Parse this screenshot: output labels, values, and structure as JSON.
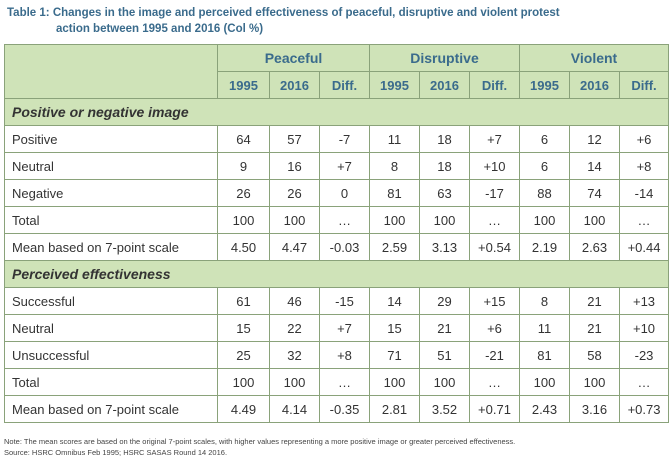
{
  "caption": {
    "label": "Table 1:",
    "line1": "Changes in the image and perceived effectiveness of peaceful, disruptive and violent protest",
    "line2": "action between 1995 and 2016 (Col %)"
  },
  "groups": [
    "Peaceful",
    "Disruptive",
    "Violent"
  ],
  "subheaders": [
    "1995",
    "2016",
    "Diff.",
    "1995",
    "2016",
    "Diff.",
    "1995",
    "2016",
    "Diff."
  ],
  "sections": [
    {
      "title": "Positive or negative image",
      "rows": [
        {
          "label": "Positive",
          "values": [
            "64",
            "57",
            "-7",
            "11",
            "18",
            "+7",
            "6",
            "12",
            "+6"
          ]
        },
        {
          "label": "Neutral",
          "values": [
            "9",
            "16",
            "+7",
            "8",
            "18",
            "+10",
            "6",
            "14",
            "+8"
          ]
        },
        {
          "label": "Negative",
          "values": [
            "26",
            "26",
            "0",
            "81",
            "63",
            "-17",
            "88",
            "74",
            "-14"
          ]
        },
        {
          "label": "Total",
          "values": [
            "100",
            "100",
            "…",
            "100",
            "100",
            "…",
            "100",
            "100",
            "…"
          ]
        },
        {
          "label": "Mean based on 7-point scale",
          "values": [
            "4.50",
            "4.47",
            "-0.03",
            "2.59",
            "3.13",
            "+0.54",
            "2.19",
            "2.63",
            "+0.44"
          ]
        }
      ]
    },
    {
      "title": "Perceived effectiveness",
      "rows": [
        {
          "label": "Successful",
          "values": [
            "61",
            "46",
            "-15",
            "14",
            "29",
            "+15",
            "8",
            "21",
            "+13"
          ]
        },
        {
          "label": "Neutral",
          "values": [
            "15",
            "22",
            "+7",
            "15",
            "21",
            "+6",
            "11",
            "21",
            "+10"
          ]
        },
        {
          "label": "Unsuccessful",
          "values": [
            "25",
            "32",
            "+8",
            "71",
            "51",
            "-21",
            "81",
            "58",
            "-23"
          ]
        },
        {
          "label": "Total",
          "values": [
            "100",
            "100",
            "…",
            "100",
            "100",
            "…",
            "100",
            "100",
            "…"
          ]
        },
        {
          "label": "Mean based on 7-point scale",
          "values": [
            "4.49",
            "4.14",
            "-0.35",
            "2.81",
            "3.52",
            "+0.71",
            "2.43",
            "3.16",
            "+0.73"
          ]
        }
      ]
    }
  ],
  "footnote": {
    "note": "Note: The mean scores are based on the original 7-point scales, with higher values representing a more positive image or greater perceived effectiveness.",
    "source": "Source: HSRC Omnibus Feb 1995; HSRC SASAS Round 14 2016."
  },
  "colors": {
    "header_fill": "#cfe3b8",
    "border": "#8aa27a",
    "caption_text": "#3a6b8c"
  }
}
